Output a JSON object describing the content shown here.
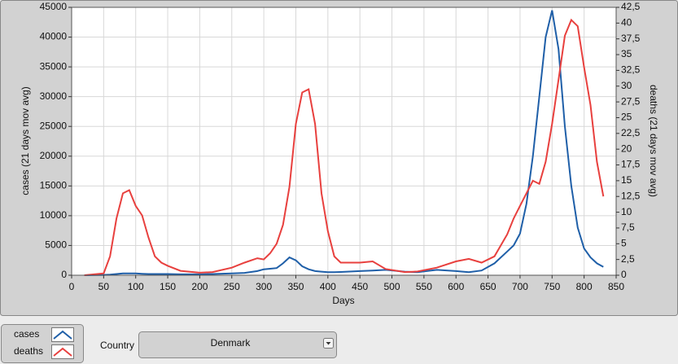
{
  "chart_data": {
    "type": "line",
    "x_label": "Days",
    "y_label": "cases  (21 days mov avg)",
    "y2_label": "deaths  (21 days mov avg)",
    "x": [
      20,
      50,
      60,
      70,
      80,
      90,
      100,
      110,
      120,
      130,
      140,
      150,
      170,
      200,
      220,
      250,
      270,
      290,
      300,
      310,
      320,
      330,
      340,
      350,
      360,
      370,
      380,
      390,
      400,
      410,
      420,
      450,
      470,
      490,
      520,
      540,
      570,
      600,
      620,
      640,
      660,
      680,
      690,
      700,
      710,
      720,
      730,
      740,
      750,
      760,
      770,
      780,
      790,
      800,
      810,
      820,
      830
    ],
    "series": [
      {
        "name": "cases",
        "color": "#1f5fa8",
        "axis": "y",
        "values": [
          0,
          50,
          100,
          200,
          300,
          300,
          300,
          250,
          200,
          200,
          200,
          200,
          150,
          150,
          200,
          300,
          400,
          700,
          1000,
          1100,
          1200,
          2000,
          3000,
          2500,
          1500,
          1000,
          700,
          600,
          500,
          500,
          550,
          700,
          800,
          900,
          600,
          500,
          900,
          700,
          500,
          800,
          2000,
          4000,
          5000,
          7000,
          12000,
          20000,
          30000,
          40000,
          44500,
          38000,
          25000,
          15000,
          8000,
          4500,
          3000,
          2000,
          1400
        ]
      },
      {
        "name": "deaths",
        "color": "#e8403e",
        "axis": "y2",
        "values": [
          0,
          0.3,
          3,
          9,
          13,
          13.5,
          11,
          9.5,
          6,
          3,
          2,
          1.5,
          0.7,
          0.4,
          0.5,
          1.2,
          2,
          2.7,
          2.5,
          3.5,
          5,
          8,
          14,
          24,
          29,
          29.5,
          24,
          13,
          7,
          3,
          2,
          2,
          2.2,
          1,
          0.5,
          0.6,
          1.2,
          2.2,
          2.6,
          2,
          3,
          6.5,
          9,
          11,
          13,
          15,
          14.5,
          18,
          24,
          31,
          38,
          40.5,
          39.5,
          33,
          27,
          18,
          12.5
        ]
      }
    ],
    "xlim": [
      0,
      850
    ],
    "xticks": [
      0,
      50,
      100,
      150,
      200,
      250,
      300,
      350,
      400,
      450,
      500,
      550,
      600,
      650,
      700,
      750,
      800,
      850
    ],
    "ylim": [
      0,
      45000
    ],
    "yticks": [
      0,
      5000,
      10000,
      15000,
      20000,
      25000,
      30000,
      35000,
      40000,
      45000
    ],
    "y2lim": [
      0,
      42.5
    ],
    "y2ticks": [
      0,
      {
        "value": 2.5,
        "label": "2,5"
      },
      5,
      {
        "value": 7.5,
        "label": "7,5"
      },
      10,
      {
        "value": 12.5,
        "label": "12,5"
      },
      15,
      {
        "value": 17.5,
        "label": "17,5"
      },
      20,
      {
        "value": 22.5,
        "label": "22,5"
      },
      25,
      {
        "value": 27.5,
        "label": "27,5"
      },
      30,
      {
        "value": 32.5,
        "label": "32,5"
      },
      35,
      {
        "value": 37.5,
        "label": "37,5"
      },
      40,
      {
        "value": 42.5,
        "label": "42,5"
      }
    ],
    "grid": true
  },
  "controls": {
    "country_label": "Country",
    "country_value": "Denmark"
  }
}
